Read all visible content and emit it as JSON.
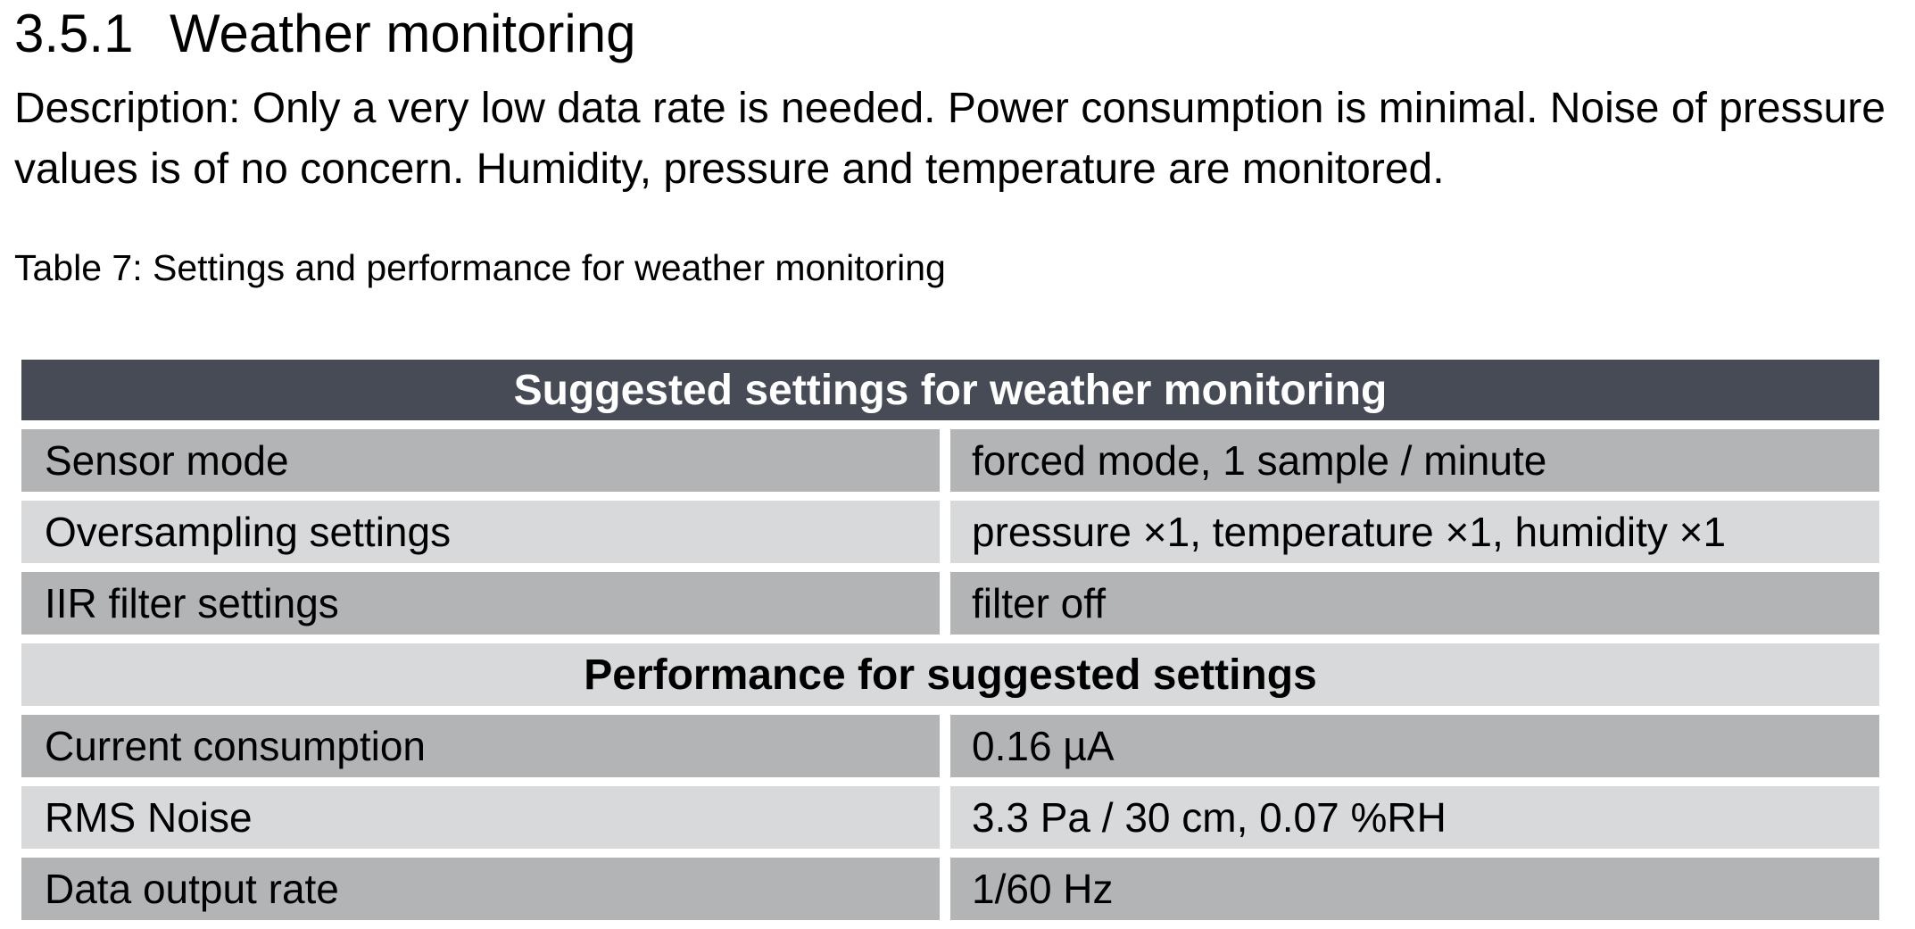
{
  "section": {
    "number": "3.5.1",
    "title": "Weather monitoring"
  },
  "description": "Description: Only a very low data rate is needed. Power consumption is minimal. Noise of pressure values is of no concern. Humidity, pressure and temperature are monitored.",
  "caption": "Table 7: Settings and performance for weather monitoring",
  "table": {
    "settings_header": "Suggested settings for weather monitoring",
    "settings_rows": [
      {
        "label": "Sensor mode",
        "value": "forced mode, 1 sample / minute"
      },
      {
        "label": "Oversampling settings",
        "value": "pressure ×1, temperature ×1, humidity ×1"
      },
      {
        "label": "IIR filter settings",
        "value": "filter off"
      }
    ],
    "performance_header": "Performance for suggested settings",
    "performance_rows": [
      {
        "label": "Current consumption",
        "value": "0.16 µA"
      },
      {
        "label": "RMS Noise",
        "value": "3.3 Pa / 30 cm, 0.07 %RH"
      },
      {
        "label": "Data output rate",
        "value": "1/60 Hz"
      }
    ]
  },
  "colors": {
    "header_bg": "#464b56",
    "row_dark": "#b3b4b6",
    "row_light": "#d8d9db"
  }
}
